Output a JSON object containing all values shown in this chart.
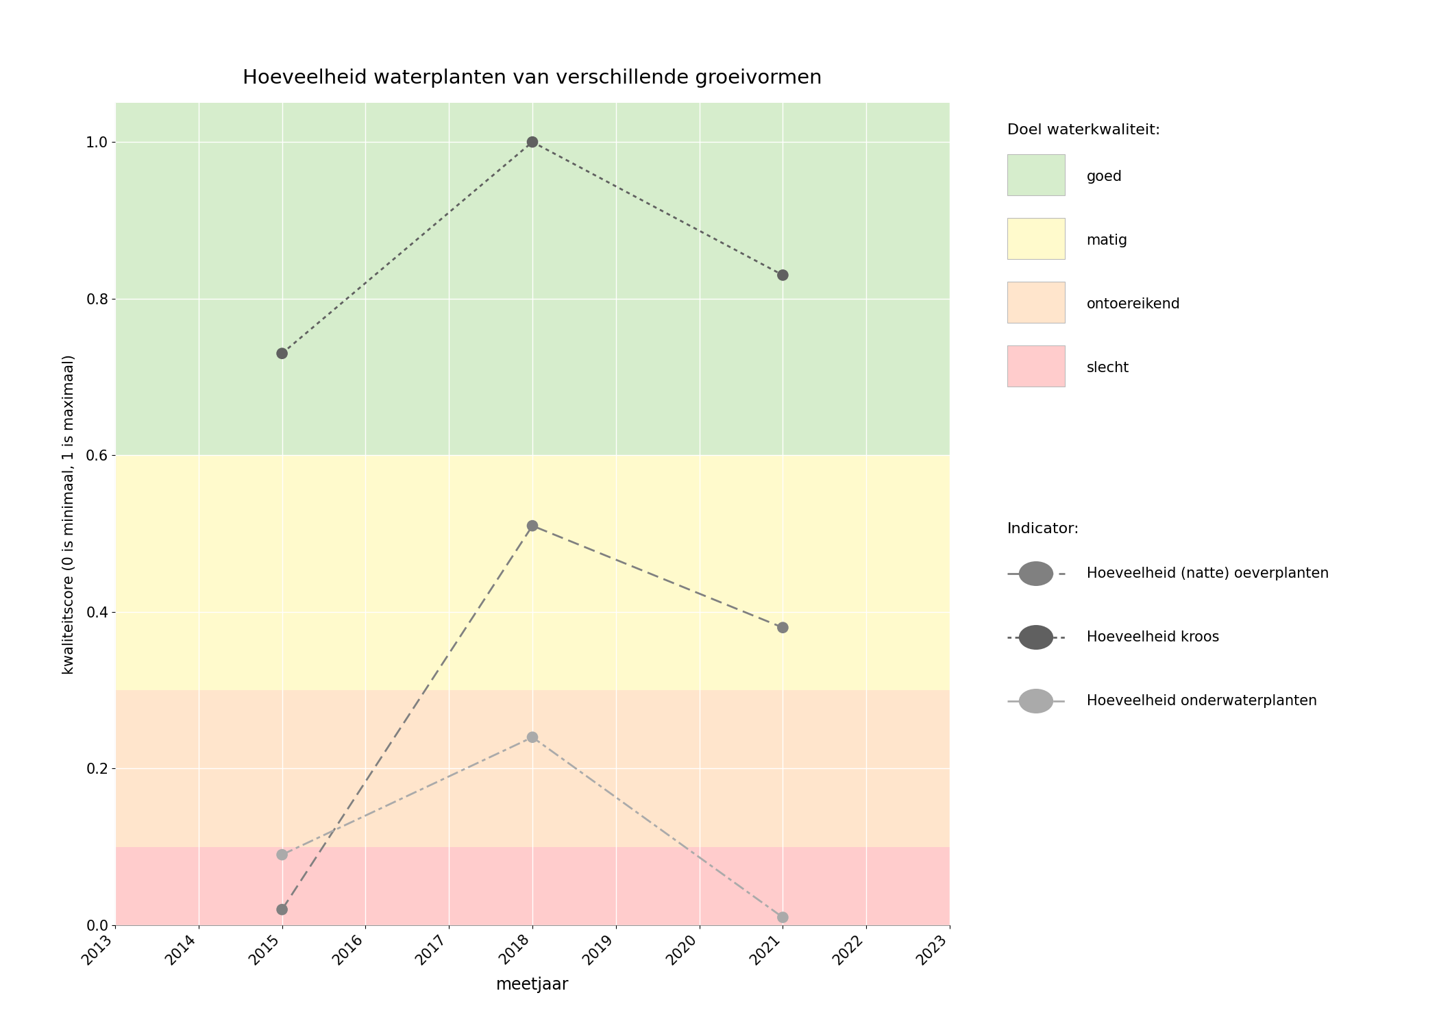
{
  "title": "Hoeveelheid waterplanten van verschillende groeivormen",
  "xlabel": "meetjaar",
  "ylabel": "kwaliteitscore (0 is minimaal, 1 is maximaal)",
  "xlim": [
    2013,
    2023
  ],
  "ylim": [
    0.0,
    1.05
  ],
  "xticks": [
    2013,
    2014,
    2015,
    2016,
    2017,
    2018,
    2019,
    2020,
    2021,
    2022,
    2023
  ],
  "yticks": [
    0.0,
    0.2,
    0.4,
    0.6,
    0.8,
    1.0
  ],
  "bg_bands": [
    {
      "ymin": 0.0,
      "ymax": 0.1,
      "color": "#FFCCCC",
      "label": "slecht"
    },
    {
      "ymin": 0.1,
      "ymax": 0.3,
      "color": "#FFE5CC",
      "label": "ontoereikend"
    },
    {
      "ymin": 0.3,
      "ymax": 0.6,
      "color": "#FFFACC",
      "label": "matig"
    },
    {
      "ymin": 0.6,
      "ymax": 1.05,
      "color": "#D6EDCC",
      "label": "goed"
    }
  ],
  "legend_doel_items": [
    {
      "label": "goed",
      "color": "#D6EDCC"
    },
    {
      "label": "matig",
      "color": "#FFFACC"
    },
    {
      "label": "ontoereikend",
      "color": "#FFE5CC"
    },
    {
      "label": "slecht",
      "color": "#FFCCCC"
    }
  ],
  "series": [
    {
      "name": "Hoeveelheid kroos",
      "years": [
        2015,
        2018,
        2021
      ],
      "values": [
        0.73,
        1.0,
        0.83
      ],
      "linestyle": "dotted",
      "color": "#606060",
      "markersize": 12
    },
    {
      "name": "Hoeveelheid (natte) oeverplanten",
      "years": [
        2015,
        2018,
        2021
      ],
      "values": [
        0.02,
        0.51,
        0.38
      ],
      "linestyle": "dashed",
      "color": "#808080",
      "markersize": 12
    },
    {
      "name": "Hoeveelheid onderwaterplanten",
      "years": [
        2015,
        2018,
        2021
      ],
      "values": [
        0.09,
        0.24,
        0.01
      ],
      "linestyle": "dashdot",
      "color": "#AAAAAA",
      "markersize": 12
    }
  ],
  "legend_doel_title": "Doel waterkwaliteit:",
  "legend_indicator_title": "Indicator:",
  "legend_indicator_order": [
    1,
    0,
    2
  ]
}
